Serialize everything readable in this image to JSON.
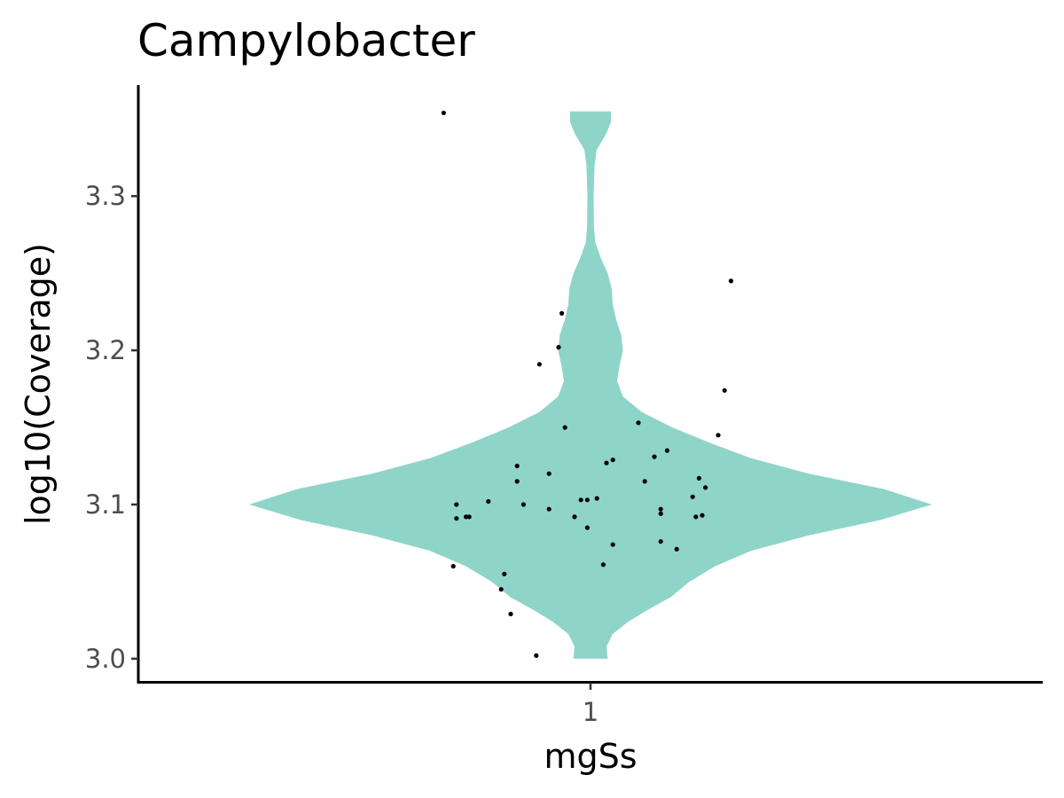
{
  "chart_data": {
    "type": "violin",
    "title": "Campylobacter",
    "xlabel": "mgSs",
    "ylabel": "log10(Coverage)",
    "categories": [
      "1"
    ],
    "yticks": [
      3.0,
      3.1,
      3.2,
      3.3
    ],
    "ylim": [
      2.985,
      3.372
    ],
    "grid": false,
    "legend": "none",
    "fill_color": "#8fd4c9",
    "point_color": "#000000",
    "violin": {
      "range": [
        3.0,
        3.355
      ],
      "density": [
        [
          3.0,
          0.05
        ],
        [
          3.008,
          0.047
        ],
        [
          3.016,
          0.065
        ],
        [
          3.024,
          0.11
        ],
        [
          3.032,
          0.17
        ],
        [
          3.04,
          0.235
        ],
        [
          3.05,
          0.29
        ],
        [
          3.06,
          0.365
        ],
        [
          3.07,
          0.47
        ],
        [
          3.08,
          0.64
        ],
        [
          3.09,
          0.85
        ],
        [
          3.1,
          1.0
        ],
        [
          3.11,
          0.86
        ],
        [
          3.12,
          0.64
        ],
        [
          3.13,
          0.47
        ],
        [
          3.14,
          0.35
        ],
        [
          3.15,
          0.24
        ],
        [
          3.16,
          0.15
        ],
        [
          3.17,
          0.095
        ],
        [
          3.18,
          0.078
        ],
        [
          3.19,
          0.085
        ],
        [
          3.2,
          0.095
        ],
        [
          3.21,
          0.09
        ],
        [
          3.22,
          0.075
        ],
        [
          3.23,
          0.065
        ],
        [
          3.24,
          0.062
        ],
        [
          3.25,
          0.05
        ],
        [
          3.26,
          0.03
        ],
        [
          3.27,
          0.014
        ],
        [
          3.28,
          0.01
        ],
        [
          3.3,
          0.009
        ],
        [
          3.32,
          0.012
        ],
        [
          3.33,
          0.018
        ],
        [
          3.34,
          0.045
        ],
        [
          3.348,
          0.06
        ],
        [
          3.355,
          0.06
        ]
      ]
    },
    "points": [
      {
        "x": -0.46,
        "y": 3.354
      },
      {
        "x": 0.44,
        "y": 3.245
      },
      {
        "x": -0.09,
        "y": 3.224
      },
      {
        "x": -0.1,
        "y": 3.202
      },
      {
        "x": -0.16,
        "y": 3.191
      },
      {
        "x": 0.42,
        "y": 3.174
      },
      {
        "x": -0.08,
        "y": 3.15
      },
      {
        "x": 0.15,
        "y": 3.153
      },
      {
        "x": 0.4,
        "y": 3.145
      },
      {
        "x": 0.24,
        "y": 3.135
      },
      {
        "x": 0.2,
        "y": 3.131
      },
      {
        "x": 0.07,
        "y": 3.129
      },
      {
        "x": 0.05,
        "y": 3.127
      },
      {
        "x": -0.23,
        "y": 3.125
      },
      {
        "x": -0.13,
        "y": 3.12
      },
      {
        "x": 0.34,
        "y": 3.117
      },
      {
        "x": 0.17,
        "y": 3.115
      },
      {
        "x": -0.23,
        "y": 3.115
      },
      {
        "x": 0.36,
        "y": 3.111
      },
      {
        "x": 0.32,
        "y": 3.105
      },
      {
        "x": 0.02,
        "y": 3.104
      },
      {
        "x": -0.03,
        "y": 3.103
      },
      {
        "x": -0.01,
        "y": 3.103
      },
      {
        "x": -0.32,
        "y": 3.102
      },
      {
        "x": -0.42,
        "y": 3.1
      },
      {
        "x": -0.21,
        "y": 3.1
      },
      {
        "x": -0.13,
        "y": 3.097
      },
      {
        "x": 0.22,
        "y": 3.097
      },
      {
        "x": 0.22,
        "y": 3.094
      },
      {
        "x": 0.35,
        "y": 3.093
      },
      {
        "x": -0.38,
        "y": 3.092
      },
      {
        "x": -0.39,
        "y": 3.092
      },
      {
        "x": -0.05,
        "y": 3.092
      },
      {
        "x": 0.33,
        "y": 3.092
      },
      {
        "x": -0.42,
        "y": 3.091
      },
      {
        "x": -0.01,
        "y": 3.085
      },
      {
        "x": 0.22,
        "y": 3.076
      },
      {
        "x": 0.07,
        "y": 3.074
      },
      {
        "x": 0.27,
        "y": 3.071
      },
      {
        "x": 0.04,
        "y": 3.061
      },
      {
        "x": -0.43,
        "y": 3.06
      },
      {
        "x": -0.27,
        "y": 3.055
      },
      {
        "x": -0.28,
        "y": 3.045
      },
      {
        "x": -0.25,
        "y": 3.029
      },
      {
        "x": -0.17,
        "y": 3.002
      }
    ]
  }
}
